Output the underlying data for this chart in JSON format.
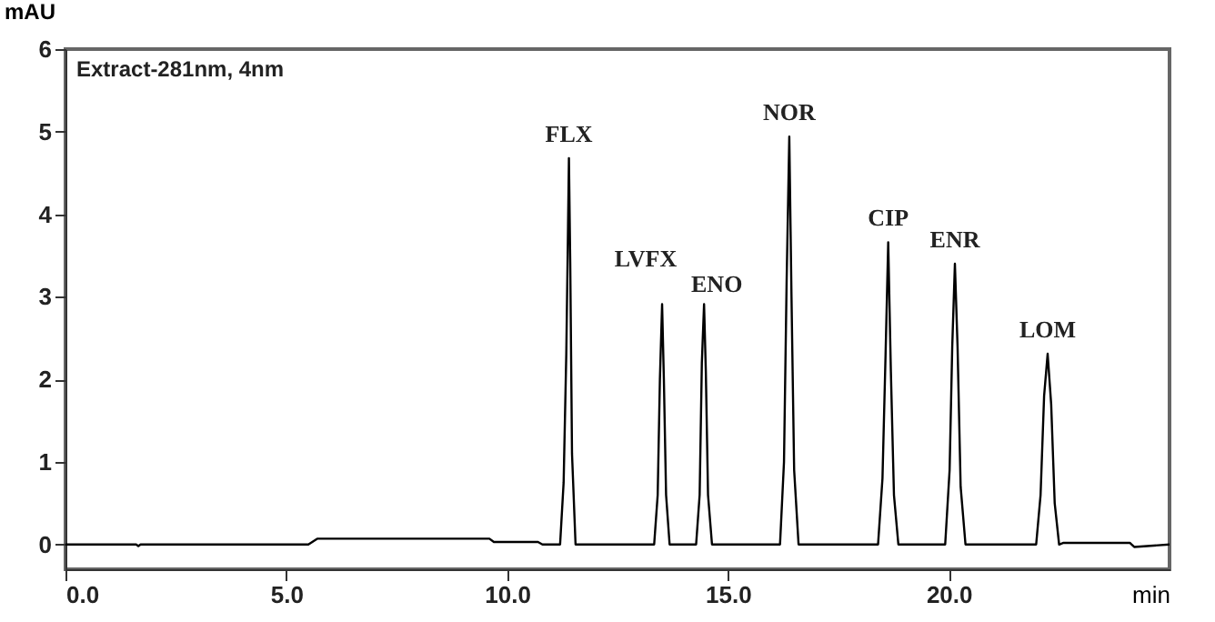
{
  "chart_data": {
    "type": "line",
    "xlabel": "min",
    "ylabel": "mAU",
    "x": [
      0,
      1.6,
      1.65,
      1.7,
      5.5,
      5.7,
      9.6,
      9.7,
      10.7,
      10.8,
      11.2,
      11.28,
      11.34,
      11.38,
      11.4,
      11.43,
      11.47,
      11.55,
      13.33,
      13.41,
      13.46,
      13.51,
      13.55,
      13.6,
      13.68,
      14.28,
      14.36,
      14.41,
      14.46,
      14.5,
      14.55,
      14.64,
      16.18,
      16.27,
      16.33,
      16.39,
      16.44,
      16.5,
      16.6,
      18.4,
      18.5,
      18.57,
      18.63,
      18.69,
      18.76,
      18.86,
      19.92,
      20.02,
      20.08,
      20.14,
      20.2,
      20.27,
      20.38,
      21.98,
      22.08,
      22.16,
      22.24,
      22.32,
      22.4,
      22.5,
      22.6,
      24.1,
      24.2,
      25
    ],
    "series": [
      {
        "color": "#000000",
        "values": [
          0,
          0,
          -0.02,
          0,
          0,
          0.07,
          0.07,
          0.03,
          0.03,
          0,
          0,
          0.75,
          2.3,
          3.85,
          4.68,
          3.4,
          1.1,
          0,
          0,
          0.6,
          2.0,
          2.91,
          2.0,
          0.6,
          0,
          0,
          0.6,
          2.2,
          2.91,
          2.1,
          0.6,
          0,
          0,
          1.0,
          3.2,
          4.94,
          3.0,
          0.9,
          0,
          0,
          0.8,
          2.3,
          3.66,
          2.1,
          0.6,
          0,
          0,
          0.9,
          2.4,
          3.4,
          2.4,
          0.7,
          0,
          0,
          0.6,
          1.8,
          2.31,
          1.7,
          0.5,
          0,
          0.02,
          0.02,
          -0.03,
          0
        ]
      }
    ],
    "xlim": [
      0,
      25
    ],
    "xticks": [
      {
        "value": 0,
        "label": "0.0"
      },
      {
        "value": 5,
        "label": "5.0"
      },
      {
        "value": 10,
        "label": "10.0"
      },
      {
        "value": 15,
        "label": "15.0"
      },
      {
        "value": 20,
        "label": "20.0"
      }
    ],
    "ylim": [
      -0.3,
      6
    ],
    "yticks": [
      0,
      1,
      2,
      3,
      4,
      5,
      6
    ],
    "grid": false,
    "marker": "none",
    "line_style": "solid",
    "annotations": [
      "Extract-281nm, 4nm",
      {
        "text": "FLX",
        "x": 11.4,
        "y": 4.68
      },
      {
        "text": "LVFX",
        "x": 13.51,
        "y": 2.91
      },
      {
        "text": "ENO",
        "x": 14.46,
        "y": 2.91
      },
      {
        "text": "NOR",
        "x": 16.39,
        "y": 4.94
      },
      {
        "text": "CIP",
        "x": 18.63,
        "y": 3.66
      },
      {
        "text": "ENR",
        "x": 20.14,
        "y": 3.4
      },
      {
        "text": "LOM",
        "x": 22.24,
        "y": 2.31
      }
    ]
  }
}
